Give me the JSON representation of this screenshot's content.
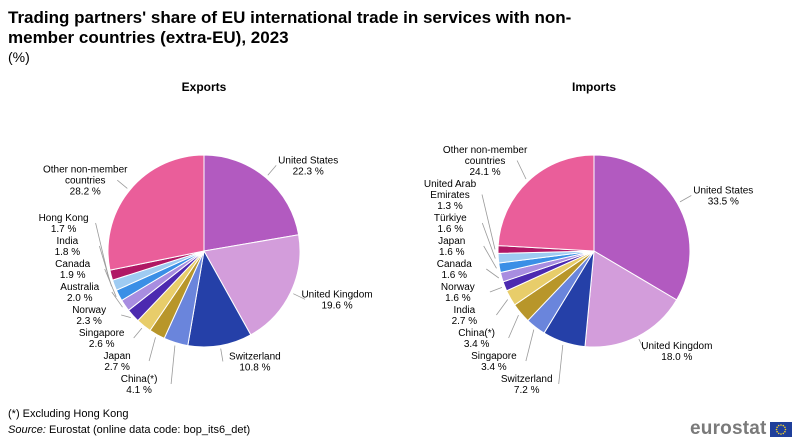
{
  "title": "Trading partners' share of EU international trade in services with non-member countries (extra-EU), 2023",
  "unit": "(%)",
  "footnote": "(*) Excluding Hong Kong",
  "source_label": "Source:",
  "source_text": " Eurostat (online data code: bop_its6_det)",
  "logo_text": "eurostat",
  "chart_data": [
    {
      "type": "pie",
      "title": "Exports",
      "slices": [
        {
          "label": "United States",
          "value": 22.3,
          "text": "22.3 %",
          "color": "#b25ac0"
        },
        {
          "label": "United Kingdom",
          "value": 19.6,
          "text": "19.6 %",
          "color": "#d39ddb"
        },
        {
          "label": "Switzerland",
          "value": 10.8,
          "text": "10.8 %",
          "color": "#2540a8"
        },
        {
          "label": "China(*)",
          "value": 4.1,
          "text": "4.1 %",
          "color": "#6a85dc"
        },
        {
          "label": "Japan",
          "value": 2.7,
          "text": "2.7 %",
          "color": "#b8962a"
        },
        {
          "label": "Singapore",
          "value": 2.6,
          "text": "2.6 %",
          "color": "#e8cd6a"
        },
        {
          "label": "Norway",
          "value": 2.3,
          "text": "2.3 %",
          "color": "#4c2ab0"
        },
        {
          "label": "Australia",
          "value": 2.0,
          "text": "2.0 %",
          "color": "#a88de0"
        },
        {
          "label": "Canada",
          "value": 1.9,
          "text": "1.9 %",
          "color": "#3a8fe6"
        },
        {
          "label": "India",
          "value": 1.8,
          "text": "1.8 %",
          "color": "#9ecbf2"
        },
        {
          "label": "Hong Kong",
          "value": 1.7,
          "text": "1.7 %",
          "color": "#b01865"
        },
        {
          "label": "Other non-member countries",
          "value": 28.2,
          "text": "28.2 %",
          "color": "#ea5e9a"
        }
      ]
    },
    {
      "type": "pie",
      "title": "Imports",
      "slices": [
        {
          "label": "United States",
          "value": 33.5,
          "text": "33.5 %",
          "color": "#b25ac0"
        },
        {
          "label": "United Kingdom",
          "value": 18.0,
          "text": "18.0 %",
          "color": "#d39ddb"
        },
        {
          "label": "Switzerland",
          "value": 7.2,
          "text": "7.2 %",
          "color": "#2540a8"
        },
        {
          "label": "Singapore",
          "value": 3.4,
          "text": "3.4 %",
          "color": "#6a85dc"
        },
        {
          "label": "China(*)",
          "value": 3.4,
          "text": "3.4 %",
          "color": "#b8962a"
        },
        {
          "label": "India",
          "value": 2.7,
          "text": "2.7 %",
          "color": "#e8cd6a"
        },
        {
          "label": "Norway",
          "value": 1.6,
          "text": "1.6 %",
          "color": "#4c2ab0"
        },
        {
          "label": "Canada",
          "value": 1.6,
          "text": "1.6 %",
          "color": "#a88de0"
        },
        {
          "label": "Japan",
          "value": 1.6,
          "text": "1.6 %",
          "color": "#3a8fe6"
        },
        {
          "label": "Türkiye",
          "value": 1.6,
          "text": "1.6 %",
          "color": "#9ecbf2"
        },
        {
          "label": "United Arab Emirates",
          "value": 1.3,
          "text": "1.3 %",
          "color": "#b01865"
        },
        {
          "label": "Other non-member countries",
          "value": 24.1,
          "text": "24.1 %",
          "color": "#ea5e9a"
        }
      ]
    }
  ]
}
